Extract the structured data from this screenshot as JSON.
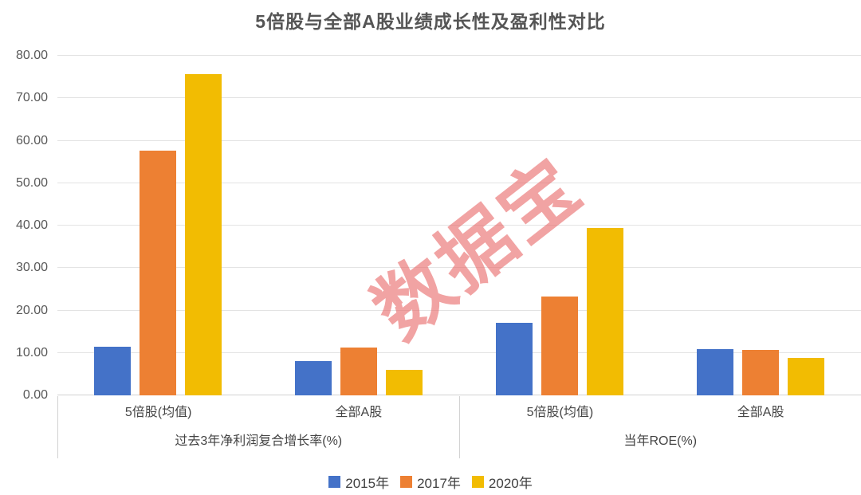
{
  "title": "5倍股与全部A股业绩成长性及盈利性对比",
  "watermark": "数据宝",
  "colors": {
    "series_2015": "#4472c8",
    "series_2017": "#ed8033",
    "series_2020": "#f2bc02",
    "watermark_pink": "#e96b6b",
    "gridline": "#e3e3e3",
    "axis_line": "#d2d2d2",
    "tick_text": "#595959",
    "title_text": "#555555"
  },
  "chart_data": {
    "type": "bar",
    "title": "5倍股与全部A股业绩成长性及盈利性对比",
    "xlabel": "",
    "ylabel": "",
    "ylim": [
      0,
      80
    ],
    "yticks": [
      "80.00",
      "70.00",
      "60.00",
      "50.00",
      "40.00",
      "30.00",
      "20.00",
      "10.00",
      "0.00"
    ],
    "grid": true,
    "legend_position": "bottom",
    "groups": [
      {
        "label": "过去3年净利润复合增长率(%)",
        "categories": [
          "5倍股(均值)",
          "全部A股"
        ]
      },
      {
        "label": "当年ROE(%)",
        "categories": [
          "5倍股(均值)",
          "全部A股"
        ]
      }
    ],
    "category_slots": [
      "5倍股(均值)",
      "全部A股",
      "5倍股(均值)",
      "全部A股"
    ],
    "series": [
      {
        "name": "2015年",
        "color": "#4472c8",
        "values": [
          11.5,
          8.1,
          17.0,
          10.9
        ]
      },
      {
        "name": "2017年",
        "color": "#ed8033",
        "values": [
          57.7,
          11.2,
          23.3,
          10.7
        ]
      },
      {
        "name": "2020年",
        "color": "#f2bc02",
        "values": [
          75.7,
          6.1,
          39.4,
          8.9
        ]
      }
    ]
  },
  "x_axis": {
    "group1_label": "过去3年净利润复合增长率(%)",
    "group2_label": "当年ROE(%)",
    "g1_cat1": "5倍股(均值)",
    "g1_cat2": "全部A股",
    "g2_cat1": "5倍股(均值)",
    "g2_cat2": "全部A股"
  },
  "legend": {
    "item1": "2015年",
    "item2": "2017年",
    "item3": "2020年"
  }
}
